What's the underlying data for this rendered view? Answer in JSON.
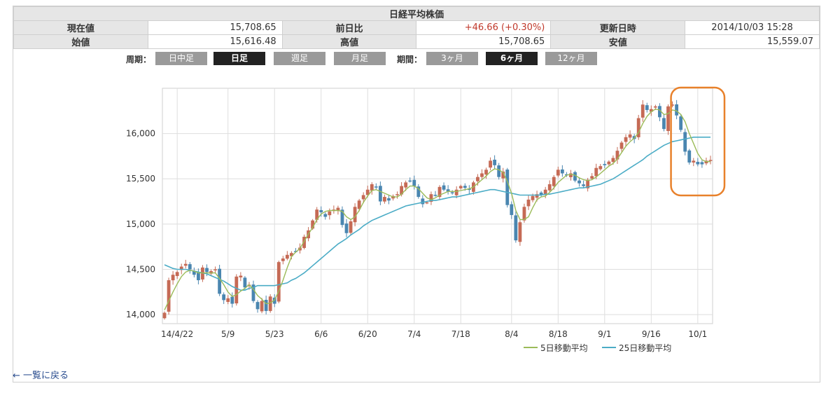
{
  "info": {
    "title": "日経平均株価",
    "rows": [
      [
        {
          "label": "現在値",
          "value": "15,708.65"
        },
        {
          "label": "前日比",
          "value": "+46.66 (+0.30%)",
          "positive": true
        },
        {
          "label": "更新日時",
          "value": "2014/10/03 15:28"
        }
      ],
      [
        {
          "label": "始値",
          "value": "15,616.48"
        },
        {
          "label": "高値",
          "value": "15,708.65"
        },
        {
          "label": "安値",
          "value": "15,559.07"
        }
      ]
    ]
  },
  "controls": {
    "period_label": "周期：",
    "period_buttons": [
      {
        "label": "日中足",
        "active": false
      },
      {
        "label": "日足",
        "active": true
      },
      {
        "label": "週足",
        "active": false
      },
      {
        "label": "月足",
        "active": false
      }
    ],
    "range_label": "期間：",
    "range_buttons": [
      {
        "label": "3ヶ月",
        "active": false
      },
      {
        "label": "6ヶ月",
        "active": true
      },
      {
        "label": "12ヶ月",
        "active": false
      }
    ]
  },
  "back_link": "← 一覧に戻る",
  "colors": {
    "up": "#c56a55",
    "down": "#4a86b0",
    "ma5": "#9bbb59",
    "ma25": "#4bacc6",
    "highlight": "#e8812b"
  },
  "chart_data": {
    "type": "candlestick",
    "ylim": [
      13900,
      16500
    ],
    "y_ticks": [
      14000,
      14500,
      15000,
      15500,
      16000
    ],
    "y_tick_labels": [
      "14,000",
      "14,500",
      "15,000",
      "15,500",
      "16,000"
    ],
    "x_tick_labels": [
      "14/4/22",
      "5/9",
      "5/23",
      "6/6",
      "6/20",
      "7/4",
      "7/18",
      "8/4",
      "8/18",
      "9/1",
      "9/16",
      "10/1"
    ],
    "x_tick_index": [
      3,
      15,
      26,
      37,
      48,
      59,
      70,
      82,
      93,
      104,
      115,
      126
    ],
    "count": 130,
    "closes": [
      14020,
      14380,
      14440,
      14470,
      14530,
      14560,
      14500,
      14440,
      14380,
      14520,
      14470,
      14480,
      14500,
      14230,
      14160,
      14180,
      14120,
      14420,
      14430,
      14300,
      14330,
      14150,
      14060,
      14150,
      14040,
      14200,
      14120,
      14580,
      14620,
      14660,
      14680,
      14700,
      14740,
      14860,
      14930,
      15040,
      15160,
      15130,
      15080,
      15140,
      15160,
      15180,
      14990,
      14900,
      15030,
      15190,
      15260,
      15320,
      15380,
      15440,
      15410,
      15250,
      15300,
      15260,
      15310,
      15330,
      15420,
      15460,
      15480,
      15420,
      15300,
      15220,
      15240,
      15330,
      15320,
      15410,
      15380,
      15360,
      15340,
      15380,
      15420,
      15400,
      15380,
      15460,
      15520,
      15560,
      15600,
      15700,
      15650,
      15520,
      15580,
      15210,
      15100,
      14820,
      15020,
      15190,
      15270,
      15310,
      15330,
      15320,
      15380,
      15440,
      15520,
      15600,
      15560,
      15540,
      15560,
      15480,
      15450,
      15420,
      15490,
      15530,
      15620,
      15640,
      15650,
      15690,
      15730,
      15810,
      15900,
      15960,
      15990,
      15940,
      16170,
      16320,
      16260,
      16270,
      16300,
      16180,
      16050,
      16300,
      16320,
      16200,
      16040,
      15800,
      15680,
      15700,
      15660,
      15660,
      15700,
      15708
    ],
    "ma5": [
      14050,
      14150,
      14250,
      14340,
      14420,
      14470,
      14490,
      14480,
      14460,
      14460,
      14460,
      14460,
      14460,
      14400,
      14330,
      14250,
      14200,
      14220,
      14260,
      14290,
      14330,
      14280,
      14210,
      14170,
      14120,
      14130,
      14160,
      14260,
      14380,
      14520,
      14640,
      14690,
      14730,
      14810,
      14890,
      14960,
      15050,
      15110,
      15140,
      15150,
      15150,
      15150,
      15140,
      15080,
      15050,
      15080,
      15150,
      15240,
      15310,
      15370,
      15380,
      15360,
      15340,
      15320,
      15300,
      15300,
      15330,
      15380,
      15420,
      15420,
      15390,
      15340,
      15290,
      15270,
      15290,
      15320,
      15340,
      15360,
      15360,
      15360,
      15370,
      15380,
      15390,
      15410,
      15450,
      15490,
      15530,
      15580,
      15610,
      15600,
      15570,
      15470,
      15340,
      15150,
      15050,
      15050,
      15080,
      15180,
      15270,
      15300,
      15310,
      15350,
      15400,
      15460,
      15500,
      15540,
      15550,
      15540,
      15510,
      15490,
      15480,
      15490,
      15520,
      15560,
      15600,
      15640,
      15670,
      15720,
      15790,
      15860,
      15910,
      15950,
      16010,
      16110,
      16190,
      16240,
      16270,
      16260,
      16210,
      16220,
      16260,
      16250,
      16210,
      16130,
      16000,
      15890,
      15780,
      15710,
      15690,
      15690
    ],
    "ma25": [
      14550,
      14530,
      14510,
      14500,
      14500,
      14500,
      14490,
      14480,
      14470,
      14460,
      14450,
      14430,
      14410,
      14390,
      14370,
      14340,
      14310,
      14290,
      14270,
      14270,
      14290,
      14300,
      14320,
      14320,
      14320,
      14320,
      14320,
      14330,
      14340,
      14350,
      14380,
      14400,
      14430,
      14460,
      14500,
      14540,
      14580,
      14620,
      14660,
      14700,
      14740,
      14780,
      14810,
      14840,
      14880,
      14910,
      14940,
      14980,
      15010,
      15040,
      15060,
      15080,
      15100,
      15120,
      15140,
      15160,
      15180,
      15200,
      15210,
      15220,
      15230,
      15240,
      15250,
      15260,
      15260,
      15270,
      15280,
      15290,
      15300,
      15300,
      15310,
      15320,
      15330,
      15340,
      15350,
      15360,
      15370,
      15380,
      15380,
      15370,
      15360,
      15350,
      15340,
      15330,
      15320,
      15320,
      15320,
      15320,
      15320,
      15320,
      15330,
      15330,
      15340,
      15350,
      15360,
      15370,
      15380,
      15390,
      15400,
      15400,
      15410,
      15420,
      15430,
      15440,
      15460,
      15480,
      15500,
      15530,
      15560,
      15590,
      15620,
      15650,
      15680,
      15710,
      15750,
      15780,
      15810,
      15840,
      15870,
      15890,
      15910,
      15920,
      15930,
      15940,
      15950,
      15960,
      15960,
      15960,
      15960,
      15960
    ],
    "legend": [
      "5日移動平均",
      "25日移動平均"
    ],
    "legend_placement": "bottom-right",
    "annotation": "rounded box around last 9 trading days"
  }
}
